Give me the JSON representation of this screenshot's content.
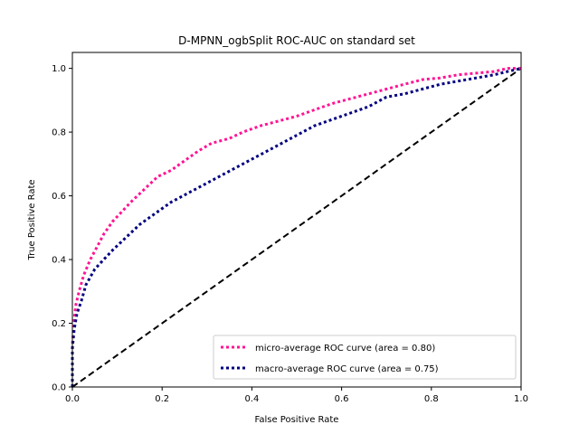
{
  "chart_data": {
    "type": "line",
    "title": "D-MPNN_ogbSplit ROC-AUC on standard set",
    "xlabel": "False Positive Rate",
    "ylabel": "True Positive Rate",
    "xlim": [
      0.0,
      1.0
    ],
    "ylim": [
      0.0,
      1.05
    ],
    "xticks": [
      "0.0",
      "0.2",
      "0.4",
      "0.6",
      "0.8",
      "1.0"
    ],
    "yticks": [
      "0.0",
      "0.2",
      "0.4",
      "0.6",
      "0.8",
      "1.0"
    ],
    "grid": false,
    "legend_placement": "lower-right",
    "series": [
      {
        "name": "micro-average ROC curve (area = 0.80)",
        "color": "#ff1493",
        "style": "dotted",
        "x": [
          0.0,
          0.0,
          0.003,
          0.008,
          0.015,
          0.025,
          0.04,
          0.055,
          0.07,
          0.09,
          0.11,
          0.13,
          0.16,
          0.19,
          0.22,
          0.25,
          0.28,
          0.31,
          0.35,
          0.38,
          0.42,
          0.46,
          0.5,
          0.54,
          0.58,
          0.62,
          0.66,
          0.7,
          0.74,
          0.78,
          0.82,
          0.86,
          0.9,
          0.94,
          0.97,
          1.0
        ],
        "y": [
          0.0,
          0.13,
          0.2,
          0.26,
          0.3,
          0.35,
          0.4,
          0.44,
          0.48,
          0.52,
          0.55,
          0.58,
          0.62,
          0.66,
          0.68,
          0.71,
          0.74,
          0.765,
          0.78,
          0.8,
          0.82,
          0.835,
          0.85,
          0.87,
          0.89,
          0.905,
          0.92,
          0.935,
          0.95,
          0.965,
          0.97,
          0.98,
          0.985,
          0.99,
          1.0,
          1.0
        ]
      },
      {
        "name": "macro-average ROC curve (area = 0.75)",
        "color": "#000080",
        "style": "dotted",
        "x": [
          0.0,
          0.0,
          0.004,
          0.01,
          0.02,
          0.03,
          0.05,
          0.07,
          0.09,
          0.12,
          0.15,
          0.18,
          0.22,
          0.26,
          0.3,
          0.34,
          0.38,
          0.42,
          0.46,
          0.5,
          0.54,
          0.58,
          0.62,
          0.66,
          0.7,
          0.74,
          0.78,
          0.82,
          0.86,
          0.9,
          0.94,
          0.97,
          1.0
        ],
        "y": [
          0.0,
          0.12,
          0.18,
          0.23,
          0.27,
          0.32,
          0.37,
          0.4,
          0.43,
          0.47,
          0.51,
          0.54,
          0.58,
          0.61,
          0.64,
          0.67,
          0.7,
          0.73,
          0.76,
          0.79,
          0.82,
          0.84,
          0.86,
          0.88,
          0.91,
          0.92,
          0.935,
          0.95,
          0.96,
          0.97,
          0.98,
          0.99,
          1.0
        ]
      }
    ],
    "reference_line": {
      "color": "#000000",
      "style": "dashed",
      "x": [
        0.0,
        1.0
      ],
      "y": [
        0.0,
        1.0
      ]
    }
  }
}
